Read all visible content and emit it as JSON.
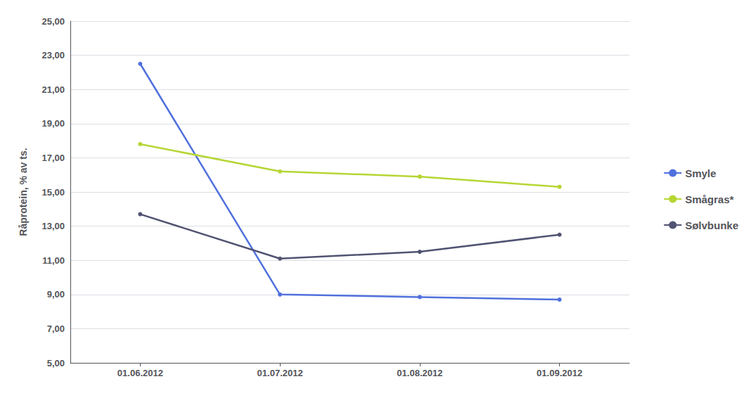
{
  "chart_data": {
    "type": "line",
    "categories": [
      "01.06.2012",
      "01.07.2012",
      "01.08.2012",
      "01.09.2012"
    ],
    "series": [
      {
        "name": "Smyle",
        "values": [
          22.5,
          9.0,
          8.85,
          8.7
        ]
      },
      {
        "name": "Smågras*",
        "values": [
          17.8,
          16.2,
          15.9,
          15.3
        ]
      },
      {
        "name": "Sølvbunke",
        "values": [
          13.7,
          11.1,
          11.5,
          12.5
        ]
      }
    ],
    "ylabel": "Råprotein, % av ts.",
    "ylim": [
      5.0,
      25.0
    ],
    "yticks": [
      {
        "value": 5.0,
        "label": "5,00"
      },
      {
        "value": 7.0,
        "label": "7,00"
      },
      {
        "value": 9.0,
        "label": "9,00"
      },
      {
        "value": 11.0,
        "label": "11,00"
      },
      {
        "value": 13.0,
        "label": "13,00"
      },
      {
        "value": 15.0,
        "label": "15,00"
      },
      {
        "value": 17.0,
        "label": "17,00"
      },
      {
        "value": 19.0,
        "label": "19,00"
      },
      {
        "value": 21.0,
        "label": "21,00"
      },
      {
        "value": 23.0,
        "label": "23,00"
      },
      {
        "value": 25.0,
        "label": "25,00"
      }
    ],
    "grid": true,
    "legend": "right"
  }
}
